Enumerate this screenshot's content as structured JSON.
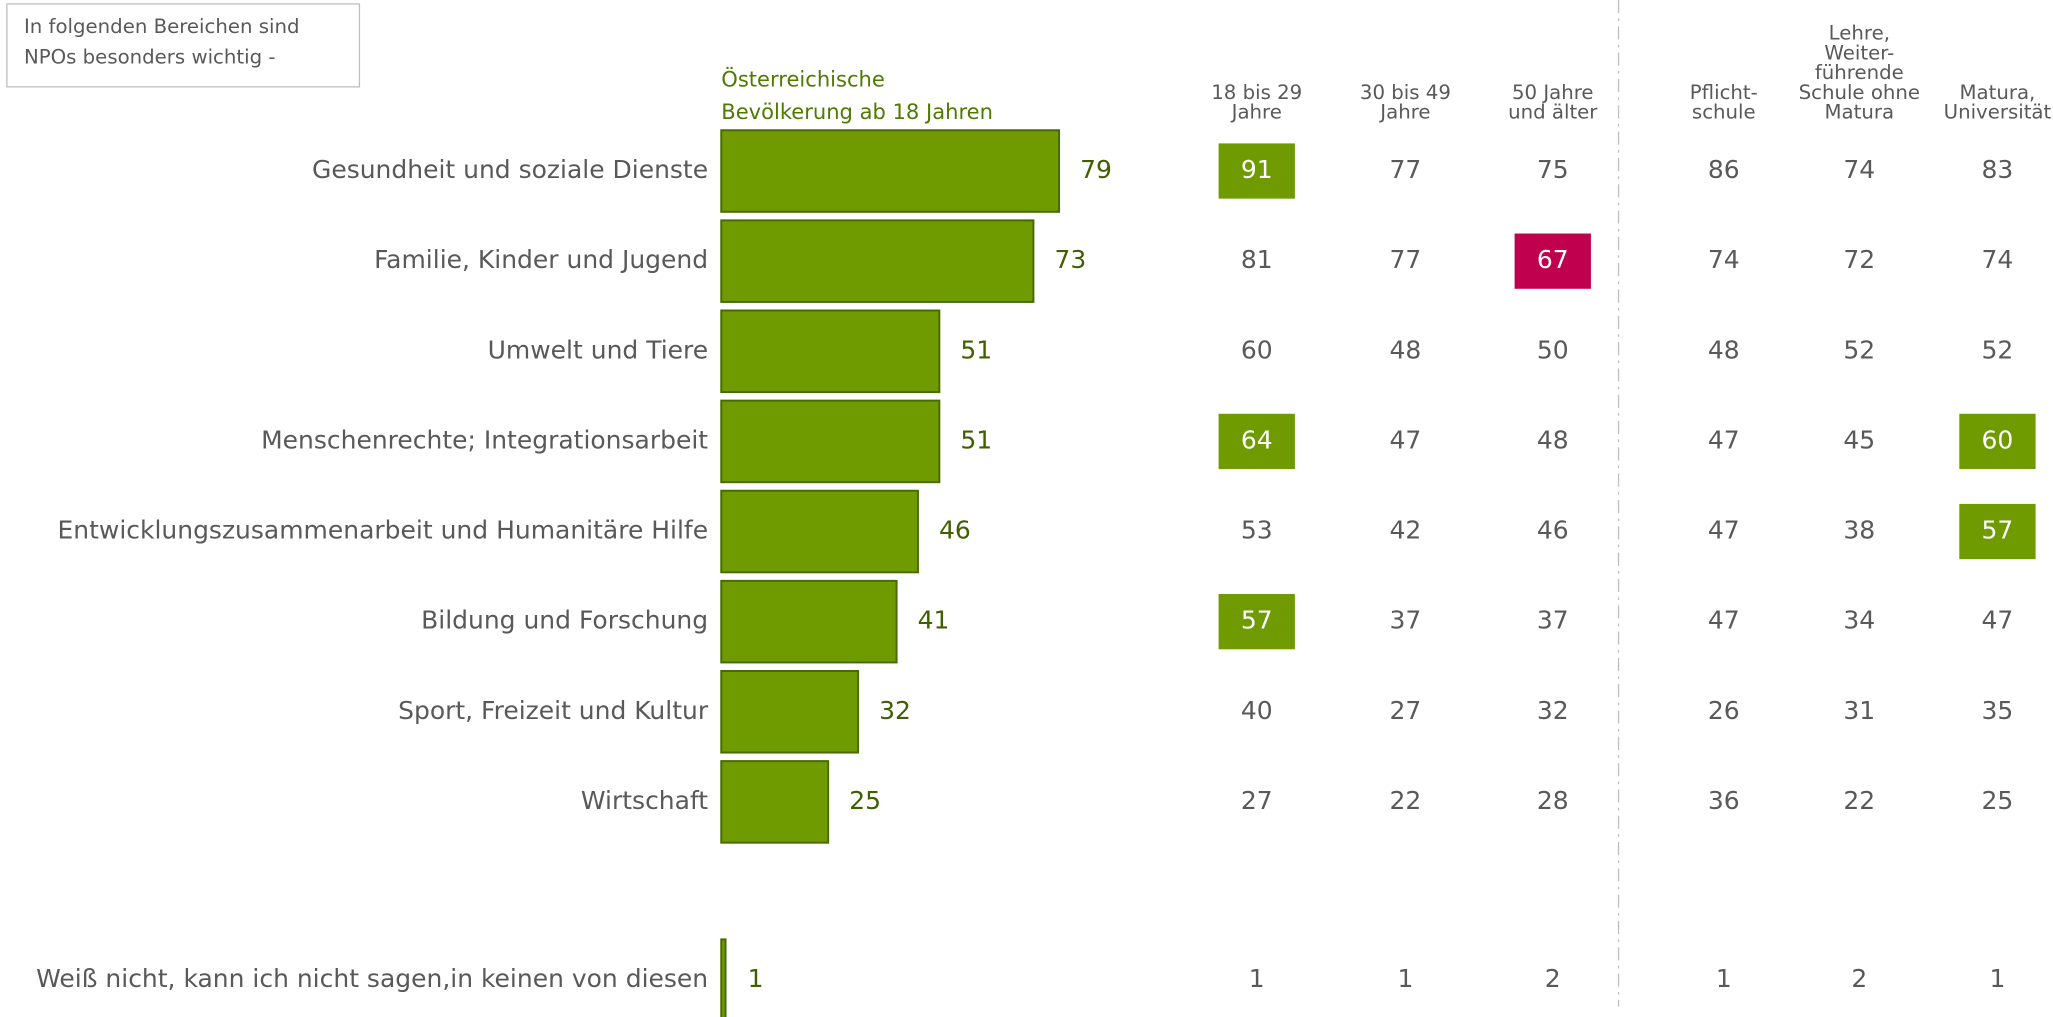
{
  "note": [
    "In folgenden Bereichen sind",
    "NPOs besonders wichtig -"
  ],
  "chart_data": {
    "type": "bar",
    "orientation": "horizontal",
    "series_label": [
      "Österreichische",
      "Bevölkerung ab 18 Jahren"
    ],
    "categories": [
      "Gesundheit und soziale Dienste",
      "Familie, Kinder und Jugend",
      "Umwelt und Tiere",
      "Menschenrechte; Integrationsarbeit",
      "Entwicklungszusammenarbeit und Humanitäre Hilfe",
      "Bildung und Forschung",
      "Sport, Freizeit und Kultur",
      "Wirtschaft",
      "Weiß nicht, kann ich nicht sagen,in keinen von diesen"
    ],
    "values": [
      79,
      73,
      51,
      51,
      46,
      41,
      32,
      25,
      1
    ],
    "color": "#6f9a00",
    "xlim": [
      0,
      100
    ]
  },
  "table": {
    "columns": [
      [
        "18 bis 29",
        "Jahre"
      ],
      [
        "30 bis 49",
        "Jahre"
      ],
      [
        "50 Jahre",
        "und älter"
      ],
      [
        "Pflicht-",
        "schule"
      ],
      [
        "Lehre,",
        "Weiter-",
        "führende",
        "Schule ohne",
        "Matura"
      ],
      [
        "Matura,",
        "Universität"
      ]
    ],
    "rows": [
      [
        91,
        77,
        75,
        86,
        74,
        83
      ],
      [
        81,
        77,
        67,
        74,
        72,
        74
      ],
      [
        60,
        48,
        50,
        48,
        52,
        52
      ],
      [
        64,
        47,
        48,
        47,
        45,
        60
      ],
      [
        53,
        42,
        46,
        47,
        38,
        57
      ],
      [
        57,
        37,
        37,
        47,
        34,
        47
      ],
      [
        40,
        27,
        32,
        26,
        31,
        35
      ],
      [
        27,
        22,
        28,
        36,
        22,
        25
      ],
      [
        1,
        1,
        2,
        1,
        2,
        1
      ]
    ],
    "highlight_colors": [
      [
        "#6f9a00",
        null,
        null,
        null,
        null,
        null
      ],
      [
        null,
        null,
        "#c0004e",
        null,
        null,
        null
      ],
      [
        null,
        null,
        null,
        null,
        null,
        null
      ],
      [
        "#6f9a00",
        null,
        null,
        null,
        null,
        "#6f9a00"
      ],
      [
        null,
        null,
        null,
        null,
        null,
        "#6f9a00"
      ],
      [
        "#6f9a00",
        null,
        null,
        null,
        null,
        null
      ],
      [
        null,
        null,
        null,
        null,
        null,
        null
      ],
      [
        null,
        null,
        null,
        null,
        null,
        null
      ],
      [
        null,
        null,
        null,
        null,
        null,
        null
      ]
    ]
  }
}
